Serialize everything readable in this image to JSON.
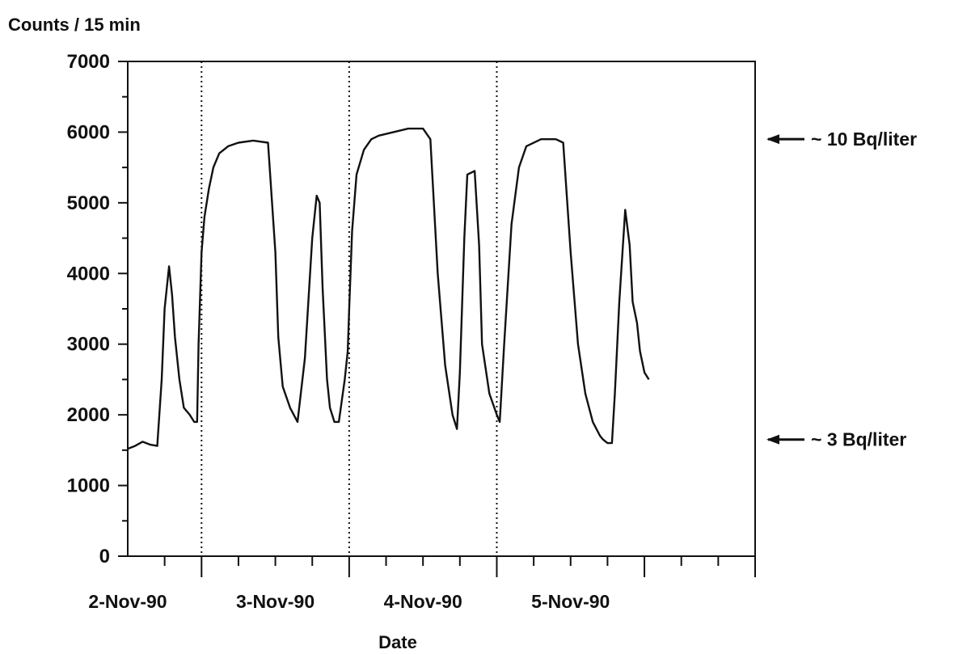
{
  "chart_data": {
    "type": "line",
    "title": "",
    "ylabel": "Counts / 15 min",
    "xlabel": "Date",
    "ylim": [
      0,
      7000
    ],
    "yticks": [
      0,
      1000,
      2000,
      3000,
      4000,
      5000,
      6000,
      7000
    ],
    "y_tick_labels": [
      "0",
      "1000",
      "2000",
      "3000",
      "4000",
      "5000",
      "6000",
      "7000"
    ],
    "xlim_days": [
      -0.5,
      3.75
    ],
    "date_labels": [
      "2-Nov-90",
      "3-Nov-90",
      "4-Nov-90",
      "5-Nov-90"
    ],
    "day_separators": [
      0.0,
      1.0,
      2.0
    ],
    "grid": false,
    "line_color": "#111111",
    "series": [
      {
        "name": "",
        "x": [
          -0.5,
          -0.45,
          -0.4,
          -0.35,
          -0.3,
          -0.27,
          -0.25,
          -0.22,
          -0.2,
          -0.18,
          -0.15,
          -0.12,
          -0.08,
          -0.05,
          -0.03,
          -0.02,
          0.0,
          0.02,
          0.05,
          0.08,
          0.12,
          0.18,
          0.25,
          0.35,
          0.45,
          0.5,
          0.52,
          0.55,
          0.6,
          0.65,
          0.7,
          0.75,
          0.78,
          0.8,
          0.82,
          0.85,
          0.87,
          0.9,
          0.93,
          0.97,
          0.99,
          1.0,
          1.02,
          1.05,
          1.1,
          1.15,
          1.2,
          1.3,
          1.4,
          1.5,
          1.55,
          1.6,
          1.65,
          1.7,
          1.73,
          1.75,
          1.78,
          1.8,
          1.85,
          1.88,
          1.9,
          1.95,
          2.0,
          2.02,
          2.05,
          2.1,
          2.15,
          2.2,
          2.3,
          2.4,
          2.45,
          2.5,
          2.55,
          2.6,
          2.65,
          2.7,
          2.72,
          2.75,
          2.78,
          2.8,
          2.83,
          2.87,
          2.9,
          2.92,
          2.95,
          2.97,
          3.0,
          3.03
        ],
        "y": [
          1520,
          1560,
          1620,
          1580,
          1560,
          2500,
          3500,
          4100,
          3700,
          3100,
          2500,
          2100,
          2000,
          1900,
          1900,
          3000,
          4300,
          4800,
          5200,
          5500,
          5700,
          5800,
          5850,
          5880,
          5850,
          4300,
          3100,
          2400,
          2100,
          1900,
          2800,
          4500,
          5100,
          5000,
          3800,
          2500,
          2100,
          1900,
          1900,
          2500,
          2900,
          3500,
          4600,
          5400,
          5750,
          5900,
          5950,
          6000,
          6050,
          6050,
          5900,
          4000,
          2700,
          2000,
          1800,
          2600,
          4500,
          5400,
          5450,
          4400,
          3000,
          2300,
          2000,
          1900,
          3000,
          4700,
          5500,
          5800,
          5900,
          5900,
          5850,
          4300,
          3000,
          2300,
          1900,
          1700,
          1650,
          1600,
          1600,
          2300,
          3600,
          4900,
          4400,
          3600,
          3300,
          2900,
          2600,
          2500
        ]
      }
    ],
    "annotations": [
      {
        "text": "~ 10 Bq/liter",
        "y": 5900
      },
      {
        "text": "~ 3 Bq/liter",
        "y": 1650
      }
    ]
  }
}
